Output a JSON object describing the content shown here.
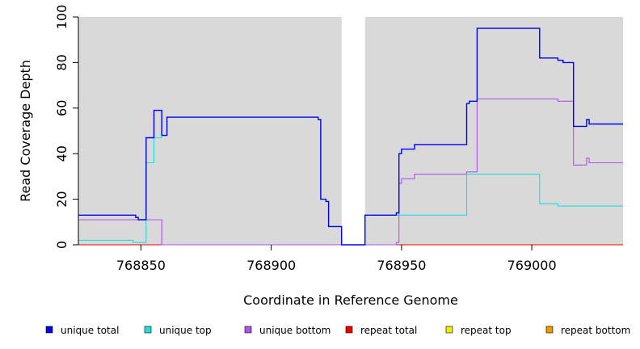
{
  "chart_data": {
    "type": "line",
    "step": true,
    "xlabel": "Coordinate in Reference Genome",
    "ylabel": "Read Coverage Depth",
    "xlim": [
      768826,
      769035
    ],
    "ylim": [
      0,
      100
    ],
    "x_ticks": [
      768850,
      768900,
      768950,
      769000
    ],
    "y_ticks": [
      0,
      20,
      40,
      60,
      80,
      100
    ],
    "grid": false,
    "background": "#d9d9d9",
    "uncovered_region": [
      768927,
      768936
    ],
    "legend_position": "bottom",
    "series": [
      {
        "name": "unique total",
        "color": "#0000ee",
        "points": [
          [
            768826,
            13
          ],
          [
            768845,
            13
          ],
          [
            768848,
            12
          ],
          [
            768849,
            11
          ],
          [
            768852,
            47
          ],
          [
            768855,
            59
          ],
          [
            768858,
            48
          ],
          [
            768860,
            56
          ],
          [
            768918,
            55
          ],
          [
            768919,
            20
          ],
          [
            768921,
            19
          ],
          [
            768922,
            8
          ],
          [
            768927,
            0
          ],
          [
            768936,
            13
          ],
          [
            768948,
            14
          ],
          [
            768949,
            40
          ],
          [
            768950,
            42
          ],
          [
            768955,
            44
          ],
          [
            768975,
            62
          ],
          [
            768976,
            63
          ],
          [
            768979,
            95
          ],
          [
            769003,
            82
          ],
          [
            769010,
            81
          ],
          [
            769012,
            80
          ],
          [
            769016,
            52
          ],
          [
            769021,
            55
          ],
          [
            769022,
            53
          ],
          [
            769035,
            53
          ]
        ]
      },
      {
        "name": "unique top",
        "color": "#22dddd",
        "points": [
          [
            768826,
            2
          ],
          [
            768846,
            2
          ],
          [
            768847,
            1
          ],
          [
            768852,
            36
          ],
          [
            768855,
            47
          ],
          [
            768858,
            48
          ],
          [
            768860,
            56
          ],
          [
            768918,
            55
          ],
          [
            768919,
            20
          ],
          [
            768921,
            19
          ],
          [
            768922,
            8
          ],
          [
            768927,
            0
          ],
          [
            768936,
            13
          ],
          [
            768948,
            13
          ],
          [
            768975,
            31
          ],
          [
            769003,
            18
          ],
          [
            769010,
            17
          ],
          [
            769035,
            17
          ]
        ]
      },
      {
        "name": "unique bottom",
        "color": "#aa55ee",
        "points": [
          [
            768826,
            11
          ],
          [
            768858,
            0
          ],
          [
            768948,
            1
          ],
          [
            768949,
            27
          ],
          [
            768950,
            29
          ],
          [
            768955,
            31
          ],
          [
            768975,
            32
          ],
          [
            768979,
            64
          ],
          [
            769010,
            63
          ],
          [
            769015,
            63
          ],
          [
            769016,
            35
          ],
          [
            769021,
            38
          ],
          [
            769022,
            36
          ],
          [
            769035,
            36
          ]
        ]
      },
      {
        "name": "repeat total",
        "color": "#ee0000",
        "points": [
          [
            768826,
            0
          ],
          [
            769035,
            0
          ]
        ]
      },
      {
        "name": "repeat top",
        "color": "#eeee00",
        "points": [
          [
            768826,
            0
          ],
          [
            769035,
            0
          ]
        ]
      },
      {
        "name": "repeat bottom",
        "color": "#ee9900",
        "points": [
          [
            768826,
            0
          ],
          [
            769035,
            0
          ]
        ]
      }
    ]
  }
}
